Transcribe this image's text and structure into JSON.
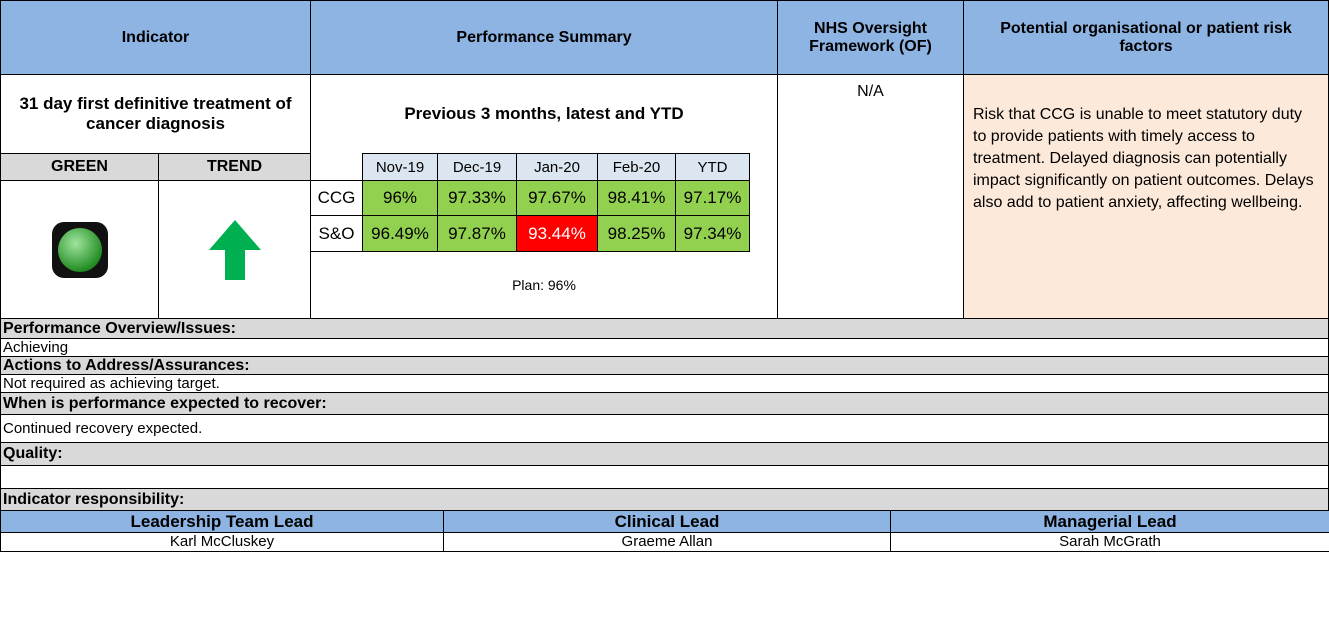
{
  "header": {
    "indicator": "Indicator",
    "performance": "Performance Summary",
    "oversight": "NHS Oversight Framework (OF)",
    "risk": "Potential organisational or patient risk factors"
  },
  "indicator": {
    "title": "31 day first definitive treatment of cancer diagnosis",
    "rating": "GREEN",
    "trend": "TREND"
  },
  "summary": {
    "subtitle": "Previous 3 months, latest and YTD",
    "months": [
      "Nov-19",
      "Dec-19",
      "Jan-20",
      "Feb-20",
      "YTD"
    ],
    "rows": [
      {
        "label": "CCG",
        "values": [
          "96%",
          "97.33%",
          "97.67%",
          "98.41%",
          "97.17%"
        ]
      },
      {
        "label": "S&O",
        "values": [
          "96.49%",
          "97.87%",
          "93.44%",
          "98.25%",
          "97.34%"
        ]
      }
    ],
    "plan": "Plan: 96%"
  },
  "oversight": "N/A",
  "risk": "Risk that CCG is unable to meet statutory duty to provide patients with timely access to treatment.  Delayed diagnosis can potentially impact significantly on patient outcomes. Delays also add to patient anxiety, affecting wellbeing.",
  "sections": [
    {
      "heading": "Performance Overview/Issues:",
      "text": "Achieving"
    },
    {
      "heading": "Actions to Address/Assurances:",
      "text": "Not required as achieving target."
    },
    {
      "heading": "When is performance expected to recover:",
      "text": "Continued recovery expected."
    },
    {
      "heading": "Quality:"
    }
  ],
  "responsibility": {
    "heading": "Indicator responsibility:",
    "roles": [
      "Leadership Team Lead",
      "Clinical Lead",
      "Managerial Lead"
    ],
    "names": [
      "Karl McCluskey",
      "Graeme Allan",
      "Sarah McGrath"
    ]
  }
}
